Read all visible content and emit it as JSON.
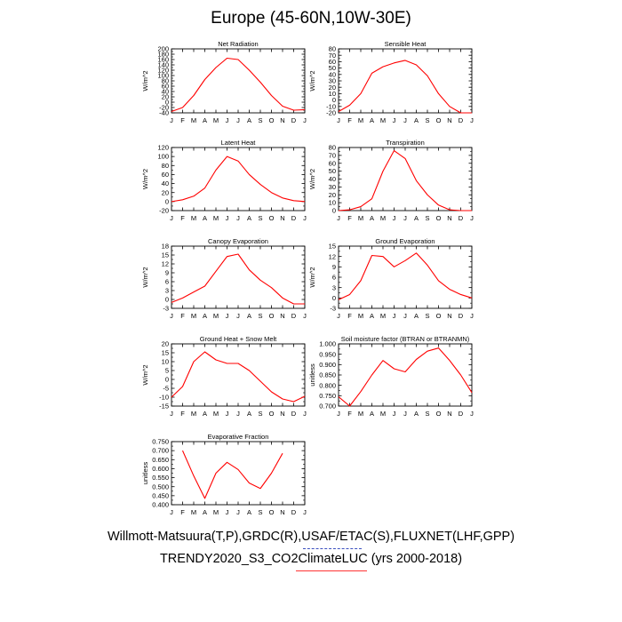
{
  "title": "Europe (45-60N,10W-30E)",
  "footer_line1": "Willmott-Matsuura(T,P),GRDC(R),USAF/ETAC(S),FLUXNET(LHF,GPP)",
  "footer_line2": "TRENDY2020_S3_CO2ClimateLUC (yrs 2000-2018)",
  "colors": {
    "series": "#ff0000",
    "underline_dashed": "#3b4fbf",
    "underline_solid": "#ff3333"
  },
  "chart_data": [
    {
      "type": "line",
      "title": "Net Radiation",
      "ylabel": "W/m^2",
      "x": [
        "J",
        "F",
        "M",
        "A",
        "M",
        "J",
        "J",
        "A",
        "S",
        "O",
        "N",
        "D",
        "J"
      ],
      "ylim": [
        -40,
        200
      ],
      "yticks": [
        -40,
        -20,
        0,
        20,
        40,
        60,
        80,
        100,
        120,
        140,
        160,
        180,
        200
      ],
      "values": [
        -35,
        -20,
        25,
        85,
        130,
        165,
        160,
        120,
        75,
        25,
        -15,
        -30,
        -28
      ],
      "grid": false
    },
    {
      "type": "line",
      "title": "Sensible Heat",
      "ylabel": "W/m^2",
      "x": [
        "J",
        "F",
        "M",
        "A",
        "M",
        "J",
        "J",
        "A",
        "S",
        "O",
        "N",
        "D",
        "J"
      ],
      "ylim": [
        -20,
        80
      ],
      "yticks": [
        -20,
        -10,
        0,
        10,
        20,
        30,
        40,
        50,
        60,
        70,
        80
      ],
      "values": [
        -18,
        -8,
        10,
        42,
        52,
        58,
        62,
        55,
        38,
        10,
        -10,
        -20,
        -20
      ],
      "grid": false
    },
    {
      "type": "line",
      "title": "Latent Heat",
      "ylabel": "W/m^2",
      "x": [
        "J",
        "F",
        "M",
        "A",
        "M",
        "J",
        "J",
        "A",
        "S",
        "O",
        "N",
        "D",
        "J"
      ],
      "ylim": [
        -20,
        120
      ],
      "yticks": [
        -20,
        0,
        20,
        40,
        60,
        80,
        100,
        120
      ],
      "values": [
        0,
        4,
        12,
        30,
        70,
        100,
        90,
        60,
        38,
        20,
        8,
        2,
        0
      ],
      "grid": false
    },
    {
      "type": "line",
      "title": "Transpiration",
      "ylabel": "W/m^2",
      "x": [
        "J",
        "F",
        "M",
        "A",
        "M",
        "J",
        "J",
        "A",
        "S",
        "O",
        "N",
        "D",
        "J"
      ],
      "ylim": [
        0,
        80
      ],
      "yticks": [
        0,
        10,
        20,
        30,
        40,
        50,
        60,
        70,
        80
      ],
      "values": [
        0,
        1,
        5,
        15,
        50,
        76,
        66,
        38,
        20,
        7,
        1,
        0,
        0
      ],
      "grid": false
    },
    {
      "type": "line",
      "title": "Canopy Evaporation",
      "ylabel": "W/m^2",
      "x": [
        "J",
        "F",
        "M",
        "A",
        "M",
        "J",
        "J",
        "A",
        "S",
        "O",
        "N",
        "D",
        "J"
      ],
      "ylim": [
        -3,
        18
      ],
      "yticks": [
        -3,
        0,
        3,
        6,
        9,
        12,
        15,
        18
      ],
      "values": [
        -1,
        0.5,
        2.5,
        4.5,
        9.5,
        14.5,
        15.3,
        10,
        6.5,
        4,
        0.5,
        -1.5,
        -1.5
      ],
      "grid": false
    },
    {
      "type": "line",
      "title": "Ground Evaporation",
      "ylabel": "W/m^2",
      "x": [
        "J",
        "F",
        "M",
        "A",
        "M",
        "J",
        "J",
        "A",
        "S",
        "O",
        "N",
        "D",
        "J"
      ],
      "ylim": [
        -3,
        15
      ],
      "yticks": [
        -3,
        0,
        3,
        6,
        9,
        12,
        15
      ],
      "values": [
        -0.5,
        1,
        5,
        12.3,
        12,
        9,
        10.8,
        13,
        9.5,
        5,
        2.5,
        1,
        0
      ],
      "grid": false
    },
    {
      "type": "line",
      "title": "Ground Heat + Snow Melt",
      "ylabel": "W/m^2",
      "x": [
        "J",
        "F",
        "M",
        "A",
        "M",
        "J",
        "J",
        "A",
        "S",
        "O",
        "N",
        "D",
        "J"
      ],
      "ylim": [
        -15,
        20
      ],
      "yticks": [
        -15,
        -10,
        -5,
        0,
        5,
        10,
        15,
        20
      ],
      "values": [
        -10,
        -4,
        10,
        15.5,
        11,
        9,
        9,
        5,
        -1,
        -7,
        -11,
        -12.5,
        -9.5
      ],
      "grid": false
    },
    {
      "type": "line",
      "title": "Soil moisture factor (BTRAN or BTRANMN)",
      "ylabel": "unitless",
      "x": [
        "J",
        "F",
        "M",
        "A",
        "M",
        "J",
        "J",
        "A",
        "S",
        "O",
        "N",
        "D",
        "J"
      ],
      "ylim": [
        0.7,
        1.0
      ],
      "yticks": [
        0.7,
        0.75,
        0.8,
        0.85,
        0.9,
        0.95,
        1.0
      ],
      "values": [
        0.745,
        0.7,
        0.77,
        0.85,
        0.92,
        0.88,
        0.865,
        0.925,
        0.965,
        0.98,
        0.92,
        0.85,
        0.765
      ],
      "grid": false
    },
    {
      "type": "line",
      "title": "Evaporative Fraction",
      "ylabel": "unitless",
      "x": [
        "J",
        "F",
        "M",
        "A",
        "M",
        "J",
        "J",
        "A",
        "S",
        "O",
        "N",
        "D",
        "J"
      ],
      "ylim": [
        0.4,
        0.75
      ],
      "yticks": [
        0.4,
        0.45,
        0.5,
        0.55,
        0.6,
        0.65,
        0.7,
        0.75
      ],
      "values": [
        null,
        0.7,
        0.56,
        0.435,
        0.575,
        0.635,
        0.595,
        0.52,
        0.49,
        0.575,
        0.685,
        null,
        null
      ],
      "grid": false
    }
  ]
}
